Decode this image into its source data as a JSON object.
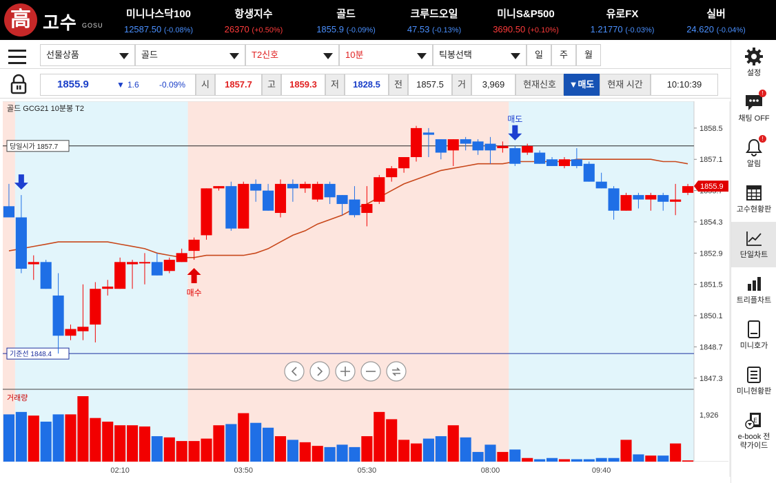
{
  "header": {
    "logo_char": "高",
    "logo_name": "고수",
    "logo_sub": "GOSU",
    "tickers": [
      {
        "name": "미니나스닥100",
        "price": "12587.50",
        "change": "(-0.08%)",
        "dir": "down"
      },
      {
        "name": "항생지수",
        "price": "26370",
        "change": "(+0.50%)",
        "dir": "up"
      },
      {
        "name": "골드",
        "price": "1855.9",
        "change": "(-0.09%)",
        "dir": "down"
      },
      {
        "name": "크루드오일",
        "price": "47.53",
        "change": "(-0.13%)",
        "dir": "down"
      },
      {
        "name": "미니S&P500",
        "price": "3690.50",
        "change": "(+0.10%)",
        "dir": "up"
      },
      {
        "name": "유로FX",
        "price": "1.21770",
        "change": "(-0.03%)",
        "dir": "down"
      },
      {
        "name": "실버",
        "price": "24.620",
        "change": "(-0.04%)",
        "dir": "down"
      }
    ]
  },
  "toolbar": {
    "product_type": "선물상품",
    "product": "골드",
    "signal": "T2신호",
    "interval": "10분",
    "tick_select": "틱봉선택",
    "periods": [
      "일",
      "주",
      "월"
    ]
  },
  "quote": {
    "price": "1855.9",
    "change_arrow": "▼",
    "change": "1.6",
    "change_pct": "-0.09%",
    "open_label": "시",
    "open": "1857.7",
    "high_label": "고",
    "high": "1859.3",
    "low_label": "저",
    "low": "1828.5",
    "prev_label": "전",
    "prev": "1857.5",
    "vol_label": "거",
    "volume": "3,969",
    "signal_label": "현재신호",
    "signal_value": "▼매도",
    "time_label": "현재 시간",
    "time": "10:10:39"
  },
  "sidebar": [
    {
      "label": "설정",
      "icon": "gear-icon"
    },
    {
      "label": "채팅 OFF",
      "icon": "chat-icon",
      "badge": "!"
    },
    {
      "label": "알림",
      "icon": "bell-icon",
      "badge": "!"
    },
    {
      "label": "고수현황판",
      "icon": "grid-board-icon"
    },
    {
      "label": "단일차트",
      "icon": "line-chart-icon",
      "active": true
    },
    {
      "label": "트리플차트",
      "icon": "bar-chart-icon"
    },
    {
      "label": "미니호가",
      "icon": "mini-quote-icon"
    },
    {
      "label": "미니현황판",
      "icon": "mini-board-icon"
    },
    {
      "label": "e-book 전략가이드",
      "icon": "ebook-icon"
    }
  ],
  "chart_data": {
    "type": "candlestick",
    "title": "골드   GCG21   10분봉   T2",
    "y_ticks": [
      1858.5,
      1857.1,
      1855.7,
      1854.3,
      1852.9,
      1851.5,
      1850.1,
      1848.7,
      1847.3
    ],
    "ylim": [
      1846.8,
      1859.7
    ],
    "x_ticks": [
      "02:10",
      "03:50",
      "05:30",
      "08:00",
      "09:40"
    ],
    "current_price": "1855.9",
    "open_line": {
      "label": "당일시가 1857.7",
      "value": 1857.7
    },
    "base_line": {
      "label": "기준선 1848.4",
      "value": 1848.4
    },
    "volume_label": "거래량",
    "volume_tick": "1,926",
    "volume_tick_value": 1926,
    "volume_max": 2700,
    "signals": [
      {
        "label": "",
        "type": "sell",
        "index": 1
      },
      {
        "label": "매수",
        "type": "buy",
        "index": 15
      },
      {
        "label": "매도",
        "type": "sell",
        "index": 41
      }
    ],
    "zones": [
      {
        "from": 0,
        "to": 1,
        "color": "red"
      },
      {
        "from": 1,
        "to": 15,
        "color": "blue"
      },
      {
        "from": 15,
        "to": 41,
        "color": "red"
      },
      {
        "from": 41,
        "to": 56,
        "color": "blue"
      }
    ],
    "candles": [
      [
        1855.0,
        1854.5,
        1856.0,
        1854.5
      ],
      [
        1854.5,
        1852.2,
        1855.5,
        1852.0
      ],
      [
        1852.4,
        1852.5,
        1852.8,
        1851.7
      ],
      [
        1852.5,
        1851.3,
        1852.6,
        1851.3
      ],
      [
        1851.0,
        1849.2,
        1852.0,
        1848.4
      ],
      [
        1849.2,
        1849.5,
        1849.7,
        1849.0
      ],
      [
        1849.4,
        1849.6,
        1851.5,
        1849.0
      ],
      [
        1849.7,
        1851.3,
        1851.6,
        1848.9
      ],
      [
        1851.3,
        1851.4,
        1851.7,
        1851.0
      ],
      [
        1851.3,
        1852.5,
        1852.7,
        1851.3
      ],
      [
        1852.4,
        1852.5,
        1852.6,
        1851.3
      ],
      [
        1852.5,
        1852.5,
        1852.9,
        1851.5
      ],
      [
        1852.5,
        1851.9,
        1852.9,
        1851.9
      ],
      [
        1852.1,
        1852.6,
        1852.7,
        1852.0
      ],
      [
        1852.5,
        1852.9,
        1853.1,
        1852.5
      ],
      [
        1853.0,
        1853.5,
        1853.6,
        1852.6
      ],
      [
        1853.7,
        1855.8,
        1855.8,
        1853.5
      ],
      [
        1855.8,
        1855.9,
        1855.9,
        1855.7
      ],
      [
        1855.9,
        1854.0,
        1856.1,
        1853.9
      ],
      [
        1854.0,
        1856.0,
        1856.1,
        1854.0
      ],
      [
        1856.0,
        1855.7,
        1856.2,
        1855.2
      ],
      [
        1855.7,
        1854.8,
        1856.0,
        1854.8
      ],
      [
        1854.7,
        1856.0,
        1856.2,
        1854.5
      ],
      [
        1856.0,
        1855.8,
        1856.2,
        1855.2
      ],
      [
        1855.8,
        1856.0,
        1856.1,
        1855.6
      ],
      [
        1855.3,
        1856.0,
        1856.1,
        1855.2
      ],
      [
        1856.0,
        1855.4,
        1856.1,
        1855.1
      ],
      [
        1855.5,
        1855.1,
        1855.5,
        1854.6
      ],
      [
        1855.3,
        1854.6,
        1855.9,
        1854.5
      ],
      [
        1854.7,
        1855.1,
        1855.9,
        1854.1
      ],
      [
        1855.2,
        1856.3,
        1856.4,
        1855.1
      ],
      [
        1856.3,
        1856.7,
        1856.8,
        1856.1
      ],
      [
        1856.7,
        1857.2,
        1857.2,
        1856.5
      ],
      [
        1857.2,
        1858.5,
        1858.6,
        1857.0
      ],
      [
        1858.3,
        1858.2,
        1858.5,
        1857.2
      ],
      [
        1858.0,
        1857.4,
        1858.0,
        1857.1
      ],
      [
        1857.5,
        1858.0,
        1858.0,
        1856.8
      ],
      [
        1858.0,
        1857.8,
        1858.1,
        1857.5
      ],
      [
        1857.9,
        1857.5,
        1858.0,
        1857.3
      ],
      [
        1857.8,
        1857.5,
        1858.1,
        1856.9
      ],
      [
        1857.6,
        1857.7,
        1857.9,
        1857.4
      ],
      [
        1857.6,
        1856.9,
        1857.7,
        1856.8
      ],
      [
        1857.4,
        1857.7,
        1857.8,
        1857.3
      ],
      [
        1857.4,
        1856.9,
        1857.5,
        1856.9
      ],
      [
        1857.1,
        1856.8,
        1857.2,
        1856.8
      ],
      [
        1856.8,
        1857.1,
        1857.2,
        1856.7
      ],
      [
        1857.1,
        1856.8,
        1857.6,
        1856.7
      ],
      [
        1856.9,
        1856.1,
        1857.0,
        1856.1
      ],
      [
        1856.1,
        1855.8,
        1856.5,
        1855.8
      ],
      [
        1855.8,
        1854.8,
        1855.9,
        1854.4
      ],
      [
        1854.8,
        1855.5,
        1855.6,
        1854.8
      ],
      [
        1855.5,
        1855.3,
        1855.6,
        1854.9
      ],
      [
        1855.3,
        1855.5,
        1855.6,
        1854.8
      ],
      [
        1855.5,
        1855.2,
        1855.6,
        1854.8
      ],
      [
        1855.2,
        1855.3,
        1856.0,
        1854.6
      ],
      [
        1855.6,
        1855.9,
        1856.0,
        1855.5
      ]
    ],
    "volumes": [
      1950,
      2050,
      1900,
      1650,
      1950,
      1950,
      2700,
      1800,
      1650,
      1500,
      1500,
      1450,
      1050,
      1000,
      850,
      850,
      950,
      1500,
      1550,
      2000,
      1600,
      1400,
      1050,
      900,
      800,
      650,
      600,
      700,
      600,
      1050,
      2050,
      1750,
      900,
      750,
      950,
      1050,
      1500,
      1000,
      400,
      700,
      400,
      500,
      150,
      100,
      150,
      100,
      100,
      100,
      150,
      150,
      900,
      300,
      250,
      250,
      750,
      50
    ],
    "ma": [
      1853.0,
      1853.1,
      1853.2,
      1853.3,
      1853.4,
      1853.4,
      1853.4,
      1853.4,
      1853.4,
      1853.3,
      1853.2,
      1853.1,
      1852.9,
      1852.8,
      1852.7,
      1852.7,
      1852.8,
      1852.8,
      1852.8,
      1852.8,
      1852.9,
      1853.1,
      1853.4,
      1853.7,
      1853.9,
      1854.2,
      1854.4,
      1854.6,
      1854.9,
      1855.1,
      1855.4,
      1855.7,
      1856.0,
      1856.2,
      1856.4,
      1856.6,
      1856.7,
      1856.8,
      1856.9,
      1856.9,
      1856.9,
      1857.0,
      1857.0,
      1857.0,
      1857.0,
      1857.0,
      1857.1,
      1857.1,
      1857.1,
      1857.1,
      1857.1,
      1857.1,
      1857.1,
      1857.0,
      1857.0,
      1856.9
    ]
  }
}
